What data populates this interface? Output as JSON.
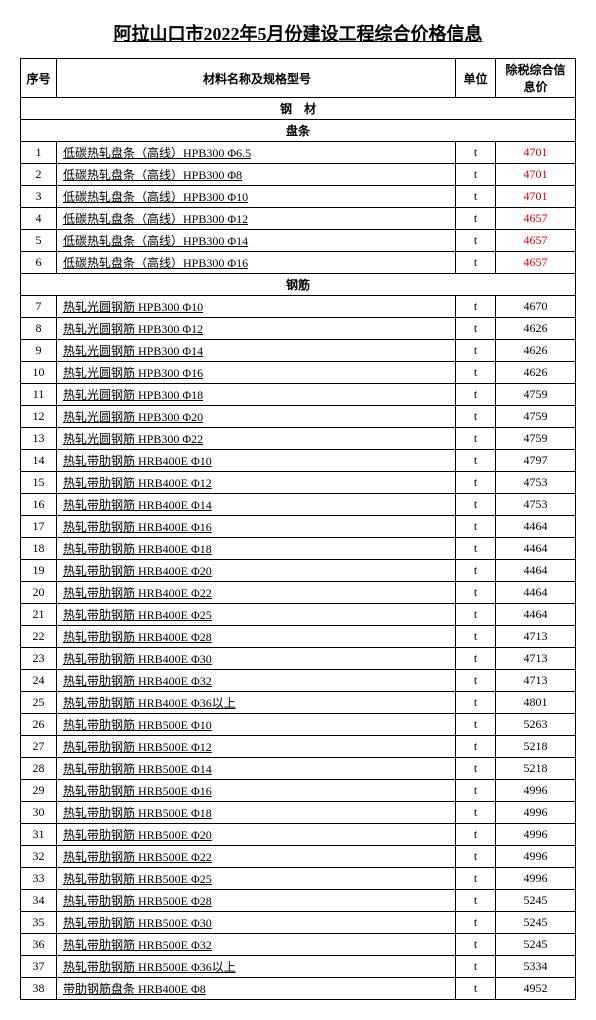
{
  "title": "阿拉山口市2022年5月份建设工程综合价格信息",
  "headers": {
    "idx": "序号",
    "name": "材料名称及规格型号",
    "unit": "单位",
    "price": "除税综合信息价"
  },
  "sections": [
    {
      "type": "section",
      "label": "钢　材"
    },
    {
      "type": "section",
      "label": "盘条"
    },
    {
      "type": "row",
      "idx": 1,
      "name": "低碳热轧盘条（高线）HPB300 Φ6.5",
      "unit": "t",
      "price": 4701,
      "red": true,
      "underline": true
    },
    {
      "type": "row",
      "idx": 2,
      "name": "低碳热轧盘条（高线）HPB300 Φ8",
      "unit": "t",
      "price": 4701,
      "red": true,
      "underline": true
    },
    {
      "type": "row",
      "idx": 3,
      "name": "低碳热轧盘条（高线）HPB300 Φ10",
      "unit": "t",
      "price": 4701,
      "red": true,
      "underline": true
    },
    {
      "type": "row",
      "idx": 4,
      "name": "低碳热轧盘条（高线）HPB300 Φ12",
      "unit": "t",
      "price": 4657,
      "red": true,
      "underline": true
    },
    {
      "type": "row",
      "idx": 5,
      "name": "低碳热轧盘条（高线）HPB300 Φ14",
      "unit": "t",
      "price": 4657,
      "red": true,
      "underline": true
    },
    {
      "type": "row",
      "idx": 6,
      "name": "低碳热轧盘条（高线）HPB300 Φ16",
      "unit": "t",
      "price": 4657,
      "red": true,
      "underline": true
    },
    {
      "type": "section",
      "label": "钢筋"
    },
    {
      "type": "row",
      "idx": 7,
      "name": "热轧光圆钢筋 HPB300 Φ10",
      "unit": "t",
      "price": 4670,
      "underline": true
    },
    {
      "type": "row",
      "idx": 8,
      "name": "热轧光圆钢筋 HPB300 Φ12",
      "unit": "t",
      "price": 4626,
      "underline": true
    },
    {
      "type": "row",
      "idx": 9,
      "name": "热轧光圆钢筋 HPB300 Φ14",
      "unit": "t",
      "price": 4626,
      "underline": true
    },
    {
      "type": "row",
      "idx": 10,
      "name": "热轧光圆钢筋 HPB300 Φ16",
      "unit": "t",
      "price": 4626,
      "underline": true
    },
    {
      "type": "row",
      "idx": 11,
      "name": "热轧光圆钢筋 HPB300 Φ18",
      "unit": "t",
      "price": 4759,
      "underline": true
    },
    {
      "type": "row",
      "idx": 12,
      "name": "热轧光圆钢筋 HPB300 Φ20",
      "unit": "t",
      "price": 4759,
      "underline": true
    },
    {
      "type": "row",
      "idx": 13,
      "name": "热轧光圆钢筋 HPB300 Φ22",
      "unit": "t",
      "price": 4759,
      "underline": true
    },
    {
      "type": "row",
      "idx": 14,
      "name": "热轧带肋钢筋 HRB400E Φ10",
      "unit": "t",
      "price": 4797,
      "underline": true
    },
    {
      "type": "row",
      "idx": 15,
      "name": "热轧带肋钢筋 HRB400E Φ12",
      "unit": "t",
      "price": 4753,
      "underline": true
    },
    {
      "type": "row",
      "idx": 16,
      "name": "热轧带肋钢筋 HRB400E Φ14",
      "unit": "t",
      "price": 4753,
      "underline": true
    },
    {
      "type": "row",
      "idx": 17,
      "name": "热轧带肋钢筋 HRB400E Φ16",
      "unit": "t",
      "price": 4464,
      "underline": true
    },
    {
      "type": "row",
      "idx": 18,
      "name": "热轧带肋钢筋 HRB400E Φ18",
      "unit": "t",
      "price": 4464,
      "underline": true
    },
    {
      "type": "row",
      "idx": 19,
      "name": "热轧带肋钢筋 HRB400E Φ20",
      "unit": "t",
      "price": 4464,
      "underline": true
    },
    {
      "type": "row",
      "idx": 20,
      "name": "热轧带肋钢筋 HRB400E Φ22",
      "unit": "t",
      "price": 4464,
      "underline": true
    },
    {
      "type": "row",
      "idx": 21,
      "name": "热轧带肋钢筋 HRB400E Φ25",
      "unit": "t",
      "price": 4464,
      "underline": true
    },
    {
      "type": "row",
      "idx": 22,
      "name": "热轧带肋钢筋 HRB400E Φ28",
      "unit": "t",
      "price": 4713,
      "underline": true
    },
    {
      "type": "row",
      "idx": 23,
      "name": "热轧带肋钢筋 HRB400E Φ30",
      "unit": "t",
      "price": 4713,
      "underline": true
    },
    {
      "type": "row",
      "idx": 24,
      "name": "热轧带肋钢筋 HRB400E Φ32",
      "unit": "t",
      "price": 4713,
      "underline": true
    },
    {
      "type": "row",
      "idx": 25,
      "name": "热轧带肋钢筋 HRB400E Φ36以上",
      "unit": "t",
      "price": 4801,
      "underline": true
    },
    {
      "type": "row",
      "idx": 26,
      "name": "热轧带肋钢筋 HRB500E Φ10",
      "unit": "t",
      "price": 5263,
      "underline": true
    },
    {
      "type": "row",
      "idx": 27,
      "name": "热轧带肋钢筋 HRB500E Φ12",
      "unit": "t",
      "price": 5218,
      "underline": true
    },
    {
      "type": "row",
      "idx": 28,
      "name": "热轧带肋钢筋 HRB500E Φ14",
      "unit": "t",
      "price": 5218,
      "underline": true
    },
    {
      "type": "row",
      "idx": 29,
      "name": "热轧带肋钢筋 HRB500E Φ16",
      "unit": "t",
      "price": 4996,
      "underline": true
    },
    {
      "type": "row",
      "idx": 30,
      "name": "热轧带肋钢筋 HRB500E Φ18",
      "unit": "t",
      "price": 4996,
      "underline": true
    },
    {
      "type": "row",
      "idx": 31,
      "name": "热轧带肋钢筋 HRB500E Φ20",
      "unit": "t",
      "price": 4996,
      "underline": true
    },
    {
      "type": "row",
      "idx": 32,
      "name": "热轧带肋钢筋 HRB500E Φ22",
      "unit": "t",
      "price": 4996,
      "underline": true
    },
    {
      "type": "row",
      "idx": 33,
      "name": "热轧带肋钢筋 HRB500E Φ25",
      "unit": "t",
      "price": 4996,
      "underline": true
    },
    {
      "type": "row",
      "idx": 34,
      "name": "热轧带肋钢筋 HRB500E Φ28",
      "unit": "t",
      "price": 5245,
      "underline": true
    },
    {
      "type": "row",
      "idx": 35,
      "name": "热轧带肋钢筋 HRB500E Φ30",
      "unit": "t",
      "price": 5245,
      "underline": true
    },
    {
      "type": "row",
      "idx": 36,
      "name": "热轧带肋钢筋 HRB500E Φ32",
      "unit": "t",
      "price": 5245,
      "underline": true
    },
    {
      "type": "row",
      "idx": 37,
      "name": "热轧带肋钢筋 HRB500E Φ36以上",
      "unit": "t",
      "price": 5334,
      "underline": true
    },
    {
      "type": "row",
      "idx": 38,
      "name": "带肋钢筋盘条 HRB400E Φ8",
      "unit": "t",
      "price": 4952,
      "underline": true
    }
  ]
}
